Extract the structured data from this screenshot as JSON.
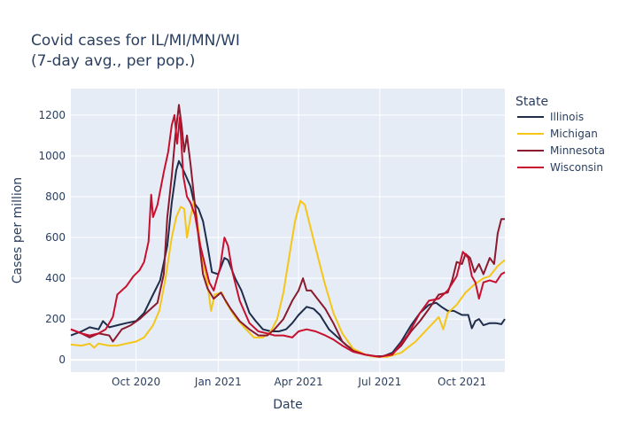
{
  "chart_data": {
    "type": "line",
    "title_lines": [
      "Covid cases for IL/MI/MN/WI",
      "(7-day avg., per pop.)"
    ],
    "xlabel": "Date",
    "ylabel": "Cases per million",
    "legend_title": "State",
    "legend_position": "right",
    "grid": true,
    "x_range": [
      "2020-07-20",
      "2021-11-18"
    ],
    "ylim": [
      -60,
      1330
    ],
    "y_ticks": [
      0,
      200,
      400,
      600,
      800,
      1000,
      1200
    ],
    "x_ticks": [
      {
        "date": "2020-10-01",
        "label": "Oct 2020"
      },
      {
        "date": "2021-01-01",
        "label": "Jan 2021"
      },
      {
        "date": "2021-04-01",
        "label": "Apr 2021"
      },
      {
        "date": "2021-07-01",
        "label": "Jul 2021"
      },
      {
        "date": "2021-10-01",
        "label": "Oct 2021"
      }
    ],
    "series": [
      {
        "name": "Illinois",
        "color": "#1f2d4a",
        "points": [
          [
            "2020-07-20",
            120
          ],
          [
            "2020-08-01",
            140
          ],
          [
            "2020-08-10",
            160
          ],
          [
            "2020-08-20",
            150
          ],
          [
            "2020-08-25",
            190
          ],
          [
            "2020-09-01",
            160
          ],
          [
            "2020-09-10",
            170
          ],
          [
            "2020-09-20",
            180
          ],
          [
            "2020-10-01",
            190
          ],
          [
            "2020-10-10",
            230
          ],
          [
            "2020-10-20",
            320
          ],
          [
            "2020-10-28",
            390
          ],
          [
            "2020-11-05",
            560
          ],
          [
            "2020-11-10",
            770
          ],
          [
            "2020-11-15",
            930
          ],
          [
            "2020-11-18",
            975
          ],
          [
            "2020-11-22",
            940
          ],
          [
            "2020-11-26",
            900
          ],
          [
            "2020-12-01",
            850
          ],
          [
            "2020-12-05",
            770
          ],
          [
            "2020-12-10",
            740
          ],
          [
            "2020-12-15",
            680
          ],
          [
            "2020-12-20",
            560
          ],
          [
            "2020-12-25",
            430
          ],
          [
            "2021-01-01",
            420
          ],
          [
            "2021-01-08",
            500
          ],
          [
            "2021-01-12",
            490
          ],
          [
            "2021-01-20",
            400
          ],
          [
            "2021-01-27",
            340
          ],
          [
            "2021-02-05",
            230
          ],
          [
            "2021-02-12",
            190
          ],
          [
            "2021-02-20",
            150
          ],
          [
            "2021-03-01",
            140
          ],
          [
            "2021-03-10",
            140
          ],
          [
            "2021-03-18",
            150
          ],
          [
            "2021-03-25",
            180
          ],
          [
            "2021-04-01",
            220
          ],
          [
            "2021-04-10",
            260
          ],
          [
            "2021-04-18",
            250
          ],
          [
            "2021-04-25",
            220
          ],
          [
            "2021-05-05",
            150
          ],
          [
            "2021-05-15",
            110
          ],
          [
            "2021-05-25",
            70
          ],
          [
            "2021-06-05",
            40
          ],
          [
            "2021-06-15",
            25
          ],
          [
            "2021-06-25",
            18
          ],
          [
            "2021-07-05",
            18
          ],
          [
            "2021-07-15",
            35
          ],
          [
            "2021-07-25",
            90
          ],
          [
            "2021-08-05",
            170
          ],
          [
            "2021-08-15",
            230
          ],
          [
            "2021-08-25",
            270
          ],
          [
            "2021-09-02",
            280
          ],
          [
            "2021-09-08",
            260
          ],
          [
            "2021-09-15",
            240
          ],
          [
            "2021-09-22",
            240
          ],
          [
            "2021-10-01",
            220
          ],
          [
            "2021-10-08",
            220
          ],
          [
            "2021-10-12",
            155
          ],
          [
            "2021-10-16",
            190
          ],
          [
            "2021-10-20",
            200
          ],
          [
            "2021-10-25",
            170
          ],
          [
            "2021-11-01",
            180
          ],
          [
            "2021-11-08",
            180
          ],
          [
            "2021-11-14",
            175
          ],
          [
            "2021-11-18",
            200
          ]
        ]
      },
      {
        "name": "Michigan",
        "color": "#f5c518",
        "points": [
          [
            "2020-07-20",
            75
          ],
          [
            "2020-08-01",
            70
          ],
          [
            "2020-08-10",
            80
          ],
          [
            "2020-08-15",
            60
          ],
          [
            "2020-08-20",
            80
          ],
          [
            "2020-09-01",
            70
          ],
          [
            "2020-09-10",
            70
          ],
          [
            "2020-09-20",
            80
          ],
          [
            "2020-10-01",
            90
          ],
          [
            "2020-10-10",
            110
          ],
          [
            "2020-10-20",
            170
          ],
          [
            "2020-10-27",
            240
          ],
          [
            "2020-11-03",
            400
          ],
          [
            "2020-11-10",
            600
          ],
          [
            "2020-11-15",
            700
          ],
          [
            "2020-11-20",
            750
          ],
          [
            "2020-11-24",
            740
          ],
          [
            "2020-11-27",
            600
          ],
          [
            "2020-12-01",
            700
          ],
          [
            "2020-12-05",
            780
          ],
          [
            "2020-12-08",
            700
          ],
          [
            "2020-12-12",
            560
          ],
          [
            "2020-12-16",
            460
          ],
          [
            "2020-12-20",
            370
          ],
          [
            "2020-12-24",
            240
          ],
          [
            "2020-12-28",
            320
          ],
          [
            "2021-01-05",
            330
          ],
          [
            "2021-01-10",
            280
          ],
          [
            "2021-01-20",
            210
          ],
          [
            "2021-01-30",
            160
          ],
          [
            "2021-02-10",
            110
          ],
          [
            "2021-02-20",
            110
          ],
          [
            "2021-03-01",
            140
          ],
          [
            "2021-03-08",
            200
          ],
          [
            "2021-03-15",
            330
          ],
          [
            "2021-03-22",
            520
          ],
          [
            "2021-03-28",
            680
          ],
          [
            "2021-04-03",
            780
          ],
          [
            "2021-04-08",
            760
          ],
          [
            "2021-04-12",
            690
          ],
          [
            "2021-04-20",
            550
          ],
          [
            "2021-04-30",
            380
          ],
          [
            "2021-05-10",
            230
          ],
          [
            "2021-05-20",
            130
          ],
          [
            "2021-06-01",
            55
          ],
          [
            "2021-06-15",
            25
          ],
          [
            "2021-06-25",
            15
          ],
          [
            "2021-07-10",
            15
          ],
          [
            "2021-07-25",
            35
          ],
          [
            "2021-08-10",
            90
          ],
          [
            "2021-08-25",
            160
          ],
          [
            "2021-09-05",
            210
          ],
          [
            "2021-09-10",
            150
          ],
          [
            "2021-09-15",
            230
          ],
          [
            "2021-09-25",
            270
          ],
          [
            "2021-10-05",
            330
          ],
          [
            "2021-10-15",
            370
          ],
          [
            "2021-10-25",
            400
          ],
          [
            "2021-11-01",
            410
          ],
          [
            "2021-11-10",
            460
          ],
          [
            "2021-11-18",
            490
          ]
        ]
      },
      {
        "name": "Minnesota",
        "color": "#8b1a2e",
        "points": [
          [
            "2020-07-20",
            150
          ],
          [
            "2020-08-01",
            130
          ],
          [
            "2020-08-10",
            110
          ],
          [
            "2020-08-20",
            130
          ],
          [
            "2020-09-01",
            120
          ],
          [
            "2020-09-05",
            90
          ],
          [
            "2020-09-15",
            150
          ],
          [
            "2020-09-25",
            170
          ],
          [
            "2020-10-05",
            200
          ],
          [
            "2020-10-15",
            240
          ],
          [
            "2020-10-25",
            280
          ],
          [
            "2020-11-01",
            420
          ],
          [
            "2020-11-05",
            700
          ],
          [
            "2020-11-10",
            900
          ],
          [
            "2020-11-14",
            1100
          ],
          [
            "2020-11-18",
            1250
          ],
          [
            "2020-11-21",
            1150
          ],
          [
            "2020-11-24",
            1020
          ],
          [
            "2020-11-27",
            1100
          ],
          [
            "2020-12-01",
            960
          ],
          [
            "2020-12-05",
            800
          ],
          [
            "2020-12-10",
            600
          ],
          [
            "2020-12-15",
            420
          ],
          [
            "2020-12-20",
            350
          ],
          [
            "2020-12-27",
            300
          ],
          [
            "2021-01-04",
            330
          ],
          [
            "2021-01-08",
            300
          ],
          [
            "2021-01-15",
            250
          ],
          [
            "2021-01-25",
            190
          ],
          [
            "2021-02-05",
            150
          ],
          [
            "2021-02-15",
            120
          ],
          [
            "2021-02-25",
            120
          ],
          [
            "2021-03-05",
            150
          ],
          [
            "2021-03-15",
            200
          ],
          [
            "2021-03-25",
            290
          ],
          [
            "2021-04-01",
            340
          ],
          [
            "2021-04-06",
            400
          ],
          [
            "2021-04-10",
            340
          ],
          [
            "2021-04-15",
            340
          ],
          [
            "2021-04-22",
            300
          ],
          [
            "2021-05-01",
            250
          ],
          [
            "2021-05-10",
            180
          ],
          [
            "2021-05-20",
            90
          ],
          [
            "2021-06-01",
            45
          ],
          [
            "2021-06-15",
            25
          ],
          [
            "2021-07-01",
            15
          ],
          [
            "2021-07-15",
            30
          ],
          [
            "2021-07-25",
            70
          ],
          [
            "2021-08-05",
            140
          ],
          [
            "2021-08-15",
            190
          ],
          [
            "2021-08-25",
            250
          ],
          [
            "2021-09-05",
            320
          ],
          [
            "2021-09-15",
            330
          ],
          [
            "2021-09-20",
            390
          ],
          [
            "2021-09-25",
            480
          ],
          [
            "2021-10-01",
            470
          ],
          [
            "2021-10-05",
            520
          ],
          [
            "2021-10-10",
            500
          ],
          [
            "2021-10-15",
            430
          ],
          [
            "2021-10-20",
            470
          ],
          [
            "2021-10-25",
            420
          ],
          [
            "2021-11-01",
            500
          ],
          [
            "2021-11-06",
            470
          ],
          [
            "2021-11-10",
            620
          ],
          [
            "2021-11-14",
            690
          ],
          [
            "2021-11-18",
            690
          ]
        ]
      },
      {
        "name": "Wisconsin",
        "color": "#c8102e",
        "points": [
          [
            "2020-07-20",
            150
          ],
          [
            "2020-08-01",
            130
          ],
          [
            "2020-08-10",
            120
          ],
          [
            "2020-08-20",
            130
          ],
          [
            "2020-08-28",
            150
          ],
          [
            "2020-09-05",
            210
          ],
          [
            "2020-09-10",
            320
          ],
          [
            "2020-09-20",
            360
          ],
          [
            "2020-09-28",
            410
          ],
          [
            "2020-10-05",
            440
          ],
          [
            "2020-10-10",
            480
          ],
          [
            "2020-10-15",
            580
          ],
          [
            "2020-10-18",
            810
          ],
          [
            "2020-10-20",
            700
          ],
          [
            "2020-10-25",
            760
          ],
          [
            "2020-11-01",
            920
          ],
          [
            "2020-11-06",
            1020
          ],
          [
            "2020-11-10",
            1150
          ],
          [
            "2020-11-13",
            1200
          ],
          [
            "2020-11-16",
            1060
          ],
          [
            "2020-11-19",
            1190
          ],
          [
            "2020-11-23",
            900
          ],
          [
            "2020-11-27",
            800
          ],
          [
            "2020-12-01",
            770
          ],
          [
            "2020-12-06",
            710
          ],
          [
            "2020-12-12",
            560
          ],
          [
            "2020-12-17",
            470
          ],
          [
            "2020-12-22",
            380
          ],
          [
            "2020-12-27",
            340
          ],
          [
            "2021-01-03",
            450
          ],
          [
            "2021-01-08",
            600
          ],
          [
            "2021-01-12",
            560
          ],
          [
            "2021-01-17",
            430
          ],
          [
            "2021-01-25",
            290
          ],
          [
            "2021-02-05",
            180
          ],
          [
            "2021-02-15",
            140
          ],
          [
            "2021-02-25",
            130
          ],
          [
            "2021-03-05",
            120
          ],
          [
            "2021-03-15",
            120
          ],
          [
            "2021-03-25",
            110
          ],
          [
            "2021-04-01",
            140
          ],
          [
            "2021-04-10",
            150
          ],
          [
            "2021-04-20",
            140
          ],
          [
            "2021-05-01",
            120
          ],
          [
            "2021-05-10",
            100
          ],
          [
            "2021-05-20",
            70
          ],
          [
            "2021-06-01",
            40
          ],
          [
            "2021-06-15",
            25
          ],
          [
            "2021-07-01",
            15
          ],
          [
            "2021-07-15",
            25
          ],
          [
            "2021-08-01",
            120
          ],
          [
            "2021-08-15",
            230
          ],
          [
            "2021-08-25",
            290
          ],
          [
            "2021-09-05",
            300
          ],
          [
            "2021-09-15",
            340
          ],
          [
            "2021-09-25",
            410
          ],
          [
            "2021-10-02",
            530
          ],
          [
            "2021-10-08",
            500
          ],
          [
            "2021-10-12",
            410
          ],
          [
            "2021-10-16",
            380
          ],
          [
            "2021-10-20",
            300
          ],
          [
            "2021-10-25",
            380
          ],
          [
            "2021-11-01",
            390
          ],
          [
            "2021-11-08",
            380
          ],
          [
            "2021-11-14",
            420
          ],
          [
            "2021-11-18",
            430
          ]
        ]
      }
    ]
  }
}
